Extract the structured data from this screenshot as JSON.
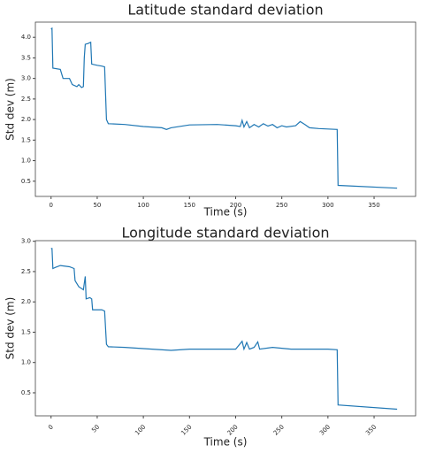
{
  "chart_data": [
    {
      "type": "line",
      "title": "Latitude standard deviation",
      "xlabel": "Time (s)",
      "ylabel": "Std dev (m)",
      "color": "#1f77b4",
      "xlim": [
        -17,
        395
      ],
      "ylim": [
        0.13,
        4.37
      ],
      "xticks": [
        0,
        50,
        100,
        150,
        200,
        250,
        300,
        350
      ],
      "xtick_rotation": 0,
      "yticks": [
        0.5,
        {
          "value": 1,
          "label": "1.0"
        },
        1.5,
        {
          "value": 2,
          "label": "2.0"
        },
        2.5,
        {
          "value": 3,
          "label": "3.0"
        },
        3.5,
        {
          "value": 4,
          "label": "4.0"
        }
      ],
      "x": [
        0,
        1,
        2,
        10,
        13,
        20,
        23,
        28,
        30,
        33,
        35,
        36,
        37,
        40,
        43,
        44,
        50,
        55,
        58,
        60,
        62,
        80,
        100,
        120,
        125,
        130,
        150,
        180,
        200,
        205,
        207,
        209,
        212,
        215,
        220,
        225,
        230,
        235,
        240,
        245,
        250,
        255,
        265,
        270,
        275,
        280,
        290,
        300,
        310,
        311,
        375
      ],
      "values": [
        4.2,
        4.22,
        3.25,
        3.22,
        3.0,
        3.0,
        2.85,
        2.8,
        2.85,
        2.78,
        2.8,
        3.5,
        3.83,
        3.85,
        3.88,
        3.35,
        3.32,
        3.3,
        3.28,
        2.0,
        1.9,
        1.88,
        1.83,
        1.8,
        1.76,
        1.8,
        1.87,
        1.88,
        1.85,
        1.83,
        1.98,
        1.82,
        1.95,
        1.8,
        1.88,
        1.82,
        1.9,
        1.84,
        1.88,
        1.8,
        1.85,
        1.82,
        1.85,
        1.95,
        1.88,
        1.8,
        1.78,
        1.77,
        1.76,
        0.4,
        0.33
      ]
    },
    {
      "type": "line",
      "title": "Longitude standard deviation",
      "xlabel": "Time (s)",
      "ylabel": "Std dev (m)",
      "color": "#1f77b4",
      "xlim": [
        -17,
        395
      ],
      "ylim": [
        0.12,
        3.01
      ],
      "xticks": [
        0,
        50,
        100,
        150,
        200,
        250,
        300,
        350
      ],
      "xtick_rotation": 45,
      "yticks": [
        0.5,
        {
          "value": 1,
          "label": "1.0"
        },
        1.5,
        {
          "value": 2,
          "label": "2.0"
        },
        2.5,
        {
          "value": 3,
          "label": "3.0"
        }
      ],
      "x": [
        0,
        1,
        2,
        5,
        10,
        20,
        25,
        26,
        30,
        35,
        37,
        38,
        42,
        44,
        45,
        55,
        58,
        60,
        62,
        80,
        100,
        130,
        150,
        200,
        207,
        209,
        212,
        215,
        220,
        224,
        226,
        240,
        260,
        300,
        310,
        311,
        375
      ],
      "values": [
        2.88,
        2.88,
        2.55,
        2.57,
        2.6,
        2.58,
        2.55,
        2.35,
        2.25,
        2.2,
        2.42,
        2.05,
        2.07,
        2.05,
        1.87,
        1.87,
        1.85,
        1.3,
        1.26,
        1.25,
        1.23,
        1.2,
        1.22,
        1.22,
        1.35,
        1.22,
        1.33,
        1.22,
        1.25,
        1.34,
        1.22,
        1.25,
        1.22,
        1.22,
        1.21,
        0.3,
        0.23
      ]
    }
  ]
}
